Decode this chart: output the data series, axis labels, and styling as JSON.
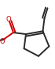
{
  "background": "#ffffff",
  "bond_color": "#2a2a2a",
  "bond_width": 1.4,
  "oxygen_color": "#cc0000",
  "figsize": [
    0.7,
    0.87
  ],
  "dpi": 100,
  "xlim": [
    0,
    70
  ],
  "ylim": [
    0,
    87
  ]
}
